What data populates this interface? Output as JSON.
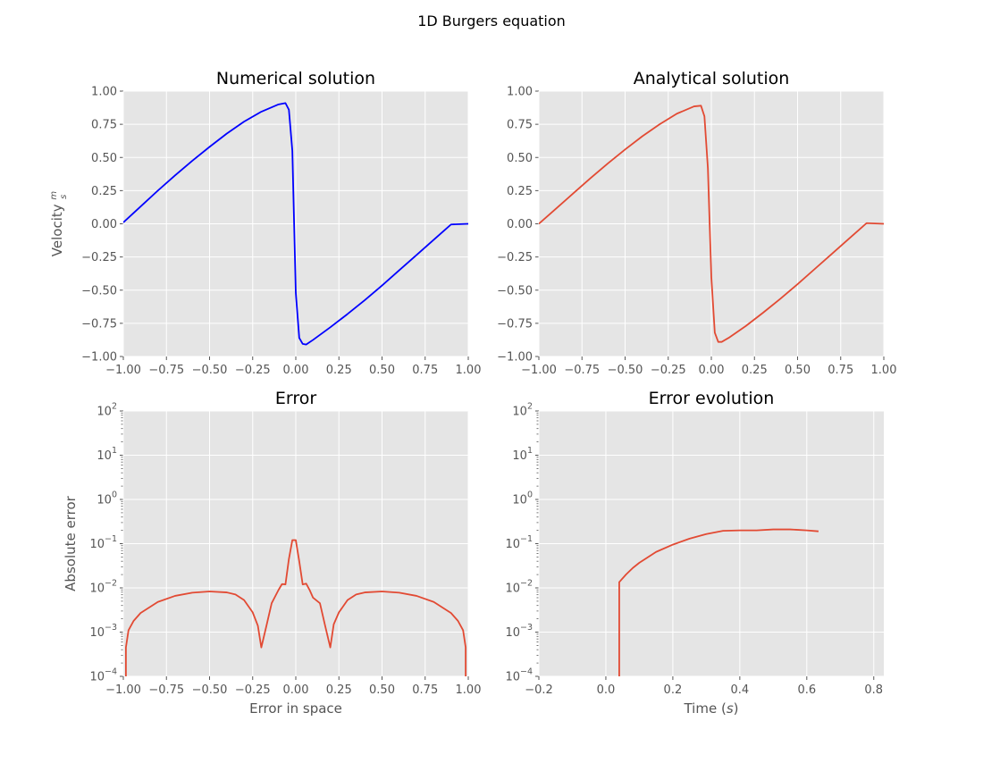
{
  "figure": {
    "suptitle": "1D Burgers equation"
  },
  "chart_data": [
    {
      "id": "numerical",
      "type": "line",
      "title": "Numerical solution",
      "xlabel": "",
      "ylabel": "Velocity m/s",
      "ylabel_main": "Velocity",
      "ylabel_num": "m",
      "ylabel_den": "s",
      "xlim": [
        -1,
        1
      ],
      "ylim": [
        -1,
        1
      ],
      "yscale": "linear",
      "grid": true,
      "xticks": [
        -1,
        -0.75,
        -0.5,
        -0.25,
        0,
        0.25,
        0.5,
        0.75,
        1
      ],
      "xtick_labels": [
        "−1.00",
        "−0.75",
        "−0.50",
        "−0.25",
        "0.00",
        "0.25",
        "0.50",
        "0.75",
        "1.00"
      ],
      "yticks": [
        -1,
        -0.75,
        -0.5,
        -0.25,
        0,
        0.25,
        0.5,
        0.75,
        1
      ],
      "ytick_labels": [
        "−1.00",
        "−0.75",
        "−0.50",
        "−0.25",
        "0.00",
        "0.25",
        "0.50",
        "0.75",
        "1.00"
      ],
      "series": [
        {
          "color": "#0000ff",
          "x": [
            -1.0,
            -0.9,
            -0.8,
            -0.7,
            -0.6,
            -0.5,
            -0.4,
            -0.3,
            -0.2,
            -0.1,
            -0.06,
            -0.04,
            -0.02,
            0.0,
            0.02,
            0.04,
            0.06,
            0.1,
            0.2,
            0.3,
            0.4,
            0.5,
            0.6,
            0.7,
            0.8,
            0.9,
            1.0
          ],
          "y": [
            0.01,
            0.13,
            0.25,
            0.365,
            0.475,
            0.58,
            0.68,
            0.77,
            0.845,
            0.9,
            0.91,
            0.86,
            0.55,
            -0.52,
            -0.86,
            -0.905,
            -0.91,
            -0.875,
            -0.78,
            -0.68,
            -0.575,
            -0.465,
            -0.35,
            -0.235,
            -0.12,
            -0.005,
            0.0
          ]
        }
      ]
    },
    {
      "id": "analytical",
      "type": "line",
      "title": "Analytical solution",
      "xlabel": "",
      "ylabel": "",
      "xlim": [
        -1,
        1
      ],
      "ylim": [
        -1,
        1
      ],
      "yscale": "linear",
      "grid": true,
      "xticks": [
        -1,
        -0.75,
        -0.5,
        -0.25,
        0,
        0.25,
        0.5,
        0.75,
        1
      ],
      "xtick_labels": [
        "−1.00",
        "−0.75",
        "−0.50",
        "−0.25",
        "0.00",
        "0.25",
        "0.50",
        "0.75",
        "1.00"
      ],
      "yticks": [
        -1,
        -0.75,
        -0.5,
        -0.25,
        0,
        0.25,
        0.5,
        0.75,
        1
      ],
      "ytick_labels": [
        "−1.00",
        "−0.75",
        "−0.50",
        "−0.25",
        "0.00",
        "0.25",
        "0.50",
        "0.75",
        "1.00"
      ],
      "series": [
        {
          "color": "#e24a33",
          "x": [
            -1.0,
            -0.9,
            -0.8,
            -0.7,
            -0.6,
            -0.5,
            -0.4,
            -0.3,
            -0.2,
            -0.1,
            -0.06,
            -0.04,
            -0.02,
            0.0,
            0.02,
            0.04,
            0.06,
            0.1,
            0.2,
            0.3,
            0.4,
            0.5,
            0.6,
            0.7,
            0.8,
            0.9,
            1.0
          ],
          "y": [
            0.0,
            0.115,
            0.23,
            0.345,
            0.455,
            0.56,
            0.66,
            0.75,
            0.83,
            0.885,
            0.89,
            0.81,
            0.42,
            -0.4,
            -0.82,
            -0.89,
            -0.89,
            -0.86,
            -0.77,
            -0.67,
            -0.565,
            -0.455,
            -0.34,
            -0.225,
            -0.11,
            0.005,
            0.0
          ]
        }
      ]
    },
    {
      "id": "error",
      "type": "line",
      "title": "Error",
      "xlabel": "Error in space",
      "ylabel": "Absolute error",
      "xlim": [
        -1,
        1
      ],
      "ylim": [
        0.0001,
        100
      ],
      "yscale": "log",
      "grid": true,
      "xticks": [
        -1,
        -0.75,
        -0.5,
        -0.25,
        0,
        0.25,
        0.5,
        0.75,
        1
      ],
      "xtick_labels": [
        "−1.00",
        "−0.75",
        "−0.50",
        "−0.25",
        "0.00",
        "0.25",
        "0.50",
        "0.75",
        "1.00"
      ],
      "yticks_exp": [
        -4,
        -3,
        -2,
        -1,
        0,
        1,
        2
      ],
      "ytick_base": "10",
      "ytick_exponents": [
        "−4",
        "−3",
        "−2",
        "−1",
        "0",
        "1",
        "2"
      ],
      "series": [
        {
          "color": "#e24a33",
          "x": [
            -0.985,
            -0.985,
            -0.97,
            -0.94,
            -0.9,
            -0.8,
            -0.7,
            -0.6,
            -0.5,
            -0.4,
            -0.35,
            -0.3,
            -0.25,
            -0.22,
            -0.2,
            -0.17,
            -0.14,
            -0.1,
            -0.08,
            -0.06,
            -0.04,
            -0.02,
            0.0,
            0.02,
            0.04,
            0.06,
            0.08,
            0.1,
            0.14,
            0.17,
            0.2,
            0.22,
            0.25,
            0.3,
            0.35,
            0.4,
            0.5,
            0.6,
            0.7,
            0.8,
            0.9,
            0.94,
            0.97,
            0.985,
            0.985
          ],
          "y": [
            0.0001,
            0.00045,
            0.0011,
            0.0018,
            0.0027,
            0.0048,
            0.0066,
            0.0078,
            0.0083,
            0.0079,
            0.0071,
            0.0053,
            0.0028,
            0.0014,
            0.00045,
            0.0014,
            0.0045,
            0.009,
            0.0122,
            0.012,
            0.045,
            0.12,
            0.12,
            0.04,
            0.012,
            0.0125,
            0.009,
            0.006,
            0.0045,
            0.0014,
            0.00045,
            0.0015,
            0.0028,
            0.0053,
            0.0071,
            0.0079,
            0.0083,
            0.0078,
            0.0066,
            0.0048,
            0.0027,
            0.0018,
            0.0011,
            0.00045,
            0.0001
          ]
        }
      ]
    },
    {
      "id": "error-evolution",
      "type": "line",
      "title": "Error evolution",
      "xlabel": "Time (s)",
      "xlabel_main": "Time (",
      "xlabel_var": "s",
      "xlabel_end": ")",
      "ylabel": "",
      "xlim": [
        -0.2,
        0.83
      ],
      "ylim": [
        0.0001,
        100
      ],
      "yscale": "log",
      "grid": true,
      "xticks": [
        -0.2,
        0.0,
        0.2,
        0.4,
        0.6,
        0.8
      ],
      "xtick_labels": [
        "−0.2",
        "0.0",
        "0.2",
        "0.4",
        "0.6",
        "0.8"
      ],
      "yticks_exp": [
        -4,
        -3,
        -2,
        -1,
        0,
        1,
        2
      ],
      "ytick_base": "10",
      "ytick_exponents": [
        "−4",
        "−3",
        "−2",
        "−1",
        "0",
        "1",
        "2"
      ],
      "series": [
        {
          "color": "#e24a33",
          "x": [
            0.04,
            0.04,
            0.06,
            0.08,
            0.1,
            0.15,
            0.2,
            0.25,
            0.3,
            0.35,
            0.4,
            0.45,
            0.5,
            0.55,
            0.6,
            0.635
          ],
          "y": [
            0.0001,
            0.0135,
            0.02,
            0.028,
            0.037,
            0.065,
            0.095,
            0.13,
            0.165,
            0.195,
            0.2,
            0.2,
            0.21,
            0.21,
            0.2,
            0.19
          ]
        }
      ]
    }
  ]
}
